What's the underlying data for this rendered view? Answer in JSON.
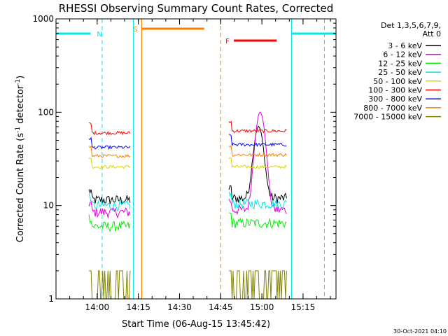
{
  "chart_data": {
    "type": "line",
    "title": "RHESSI Observing Summary Count Rates, Corrected",
    "xlabel": "Start Time (06-Aug-15 13:45:42)",
    "ylabel_main": "Corrected Count Rate (s",
    "ylabel_sup1": "-1",
    "ylabel_mid": " detector",
    "ylabel_sup2": "-1",
    "ylabel_end": ")",
    "y_scale": "log",
    "ylim": [
      1,
      1000
    ],
    "xlim_minutes": [
      13.75,
      15.45
    ],
    "x_ticks": [
      {
        "label": "14:00",
        "value": 14.0
      },
      {
        "label": "14:15",
        "value": 14.25
      },
      {
        "label": "14:30",
        "value": 14.5
      },
      {
        "label": "14:45",
        "value": 14.75
      },
      {
        "label": "15:00",
        "value": 15.0
      },
      {
        "label": "15:15",
        "value": 15.25
      }
    ],
    "y_ticks": [
      {
        "label": "1",
        "value": 1
      },
      {
        "label": "10",
        "value": 10
      },
      {
        "label": "100",
        "value": 100
      },
      {
        "label": "1000",
        "value": 1000
      }
    ],
    "legend_header_1": "Det 1,3,5,6,7,9,",
    "legend_header_2": "Att 0",
    "legend_placement": "right",
    "footer_date": "30-Oct-2021 04:10",
    "series": [
      {
        "name": "3 - 6 keV",
        "color": "#000000",
        "segments": [
          {
            "x0": 13.95,
            "x1": 14.2,
            "level": 11.5
          },
          {
            "x0": 14.8,
            "x1": 15.15,
            "level": 12,
            "peak": {
              "x": 14.98,
              "value": 70
            }
          }
        ]
      },
      {
        "name": "6 - 12 keV",
        "color": "#e000e0",
        "segments": [
          {
            "x0": 13.95,
            "x1": 14.2,
            "level": 8.5
          },
          {
            "x0": 14.8,
            "x1": 15.15,
            "level": 9,
            "peak": {
              "x": 14.99,
              "value": 100
            }
          }
        ]
      },
      {
        "name": "12 - 25 keV",
        "color": "#00ee00",
        "segments": [
          {
            "x0": 13.95,
            "x1": 14.2,
            "level": 6
          },
          {
            "x0": 14.8,
            "x1": 15.15,
            "level": 6.5
          }
        ]
      },
      {
        "name": "25 - 50 keV",
        "color": "#00e8e8",
        "segments": [
          {
            "x0": 13.95,
            "x1": 14.2,
            "level": 10
          },
          {
            "x0": 14.8,
            "x1": 15.15,
            "level": 10.5
          }
        ]
      },
      {
        "name": "50 - 100 keV",
        "color": "#d8d800",
        "segments": [
          {
            "x0": 13.95,
            "x1": 14.2,
            "level": 26
          },
          {
            "x0": 14.8,
            "x1": 15.15,
            "level": 26
          }
        ]
      },
      {
        "name": "100 - 300 keV",
        "color": "#ff0000",
        "segments": [
          {
            "x0": 13.95,
            "x1": 14.2,
            "level": 60
          },
          {
            "x0": 14.8,
            "x1": 15.15,
            "level": 63
          }
        ]
      },
      {
        "name": "300 - 800 keV",
        "color": "#0000ff",
        "segments": [
          {
            "x0": 13.95,
            "x1": 14.2,
            "level": 42
          },
          {
            "x0": 14.8,
            "x1": 15.15,
            "level": 45
          }
        ]
      },
      {
        "name": "800 - 7000 keV",
        "color": "#ff8000",
        "segments": [
          {
            "x0": 13.95,
            "x1": 14.2,
            "level": 34
          },
          {
            "x0": 14.8,
            "x1": 15.15,
            "level": 35
          }
        ]
      },
      {
        "name": "7000 - 15000 keV",
        "color": "#808000",
        "segments": [
          {
            "x0": 13.95,
            "x1": 14.2,
            "level": 2
          },
          {
            "x0": 14.8,
            "x1": 15.15,
            "level": 2
          }
        ]
      }
    ],
    "annotations": [
      {
        "label": "N",
        "color": "#00e8e8",
        "bar_x0": 13.75,
        "bar_x1": 13.96,
        "dash_x": 14.03,
        "solid_x": 13.75
      },
      {
        "label": "S",
        "color": "#ff8000",
        "bar_x0": 14.27,
        "bar_x1": 14.65,
        "dash_x": 14.75,
        "solid_x": 14.27
      },
      {
        "label": "F",
        "color": "#ff0000",
        "bar_x0": 14.83,
        "bar_x1": 15.09
      },
      {
        "label": "",
        "color": "#00e8e8",
        "bar_x0": 15.18,
        "bar_x1": 15.45,
        "dash_x": 15.38,
        "solid_x": 15.18
      }
    ],
    "region_edges": [
      {
        "x": 14.22,
        "color": "#00e8e8"
      },
      {
        "x": 15.18,
        "color": "#00e8e8"
      },
      {
        "x": 14.27,
        "color": "#ff8000"
      }
    ]
  }
}
